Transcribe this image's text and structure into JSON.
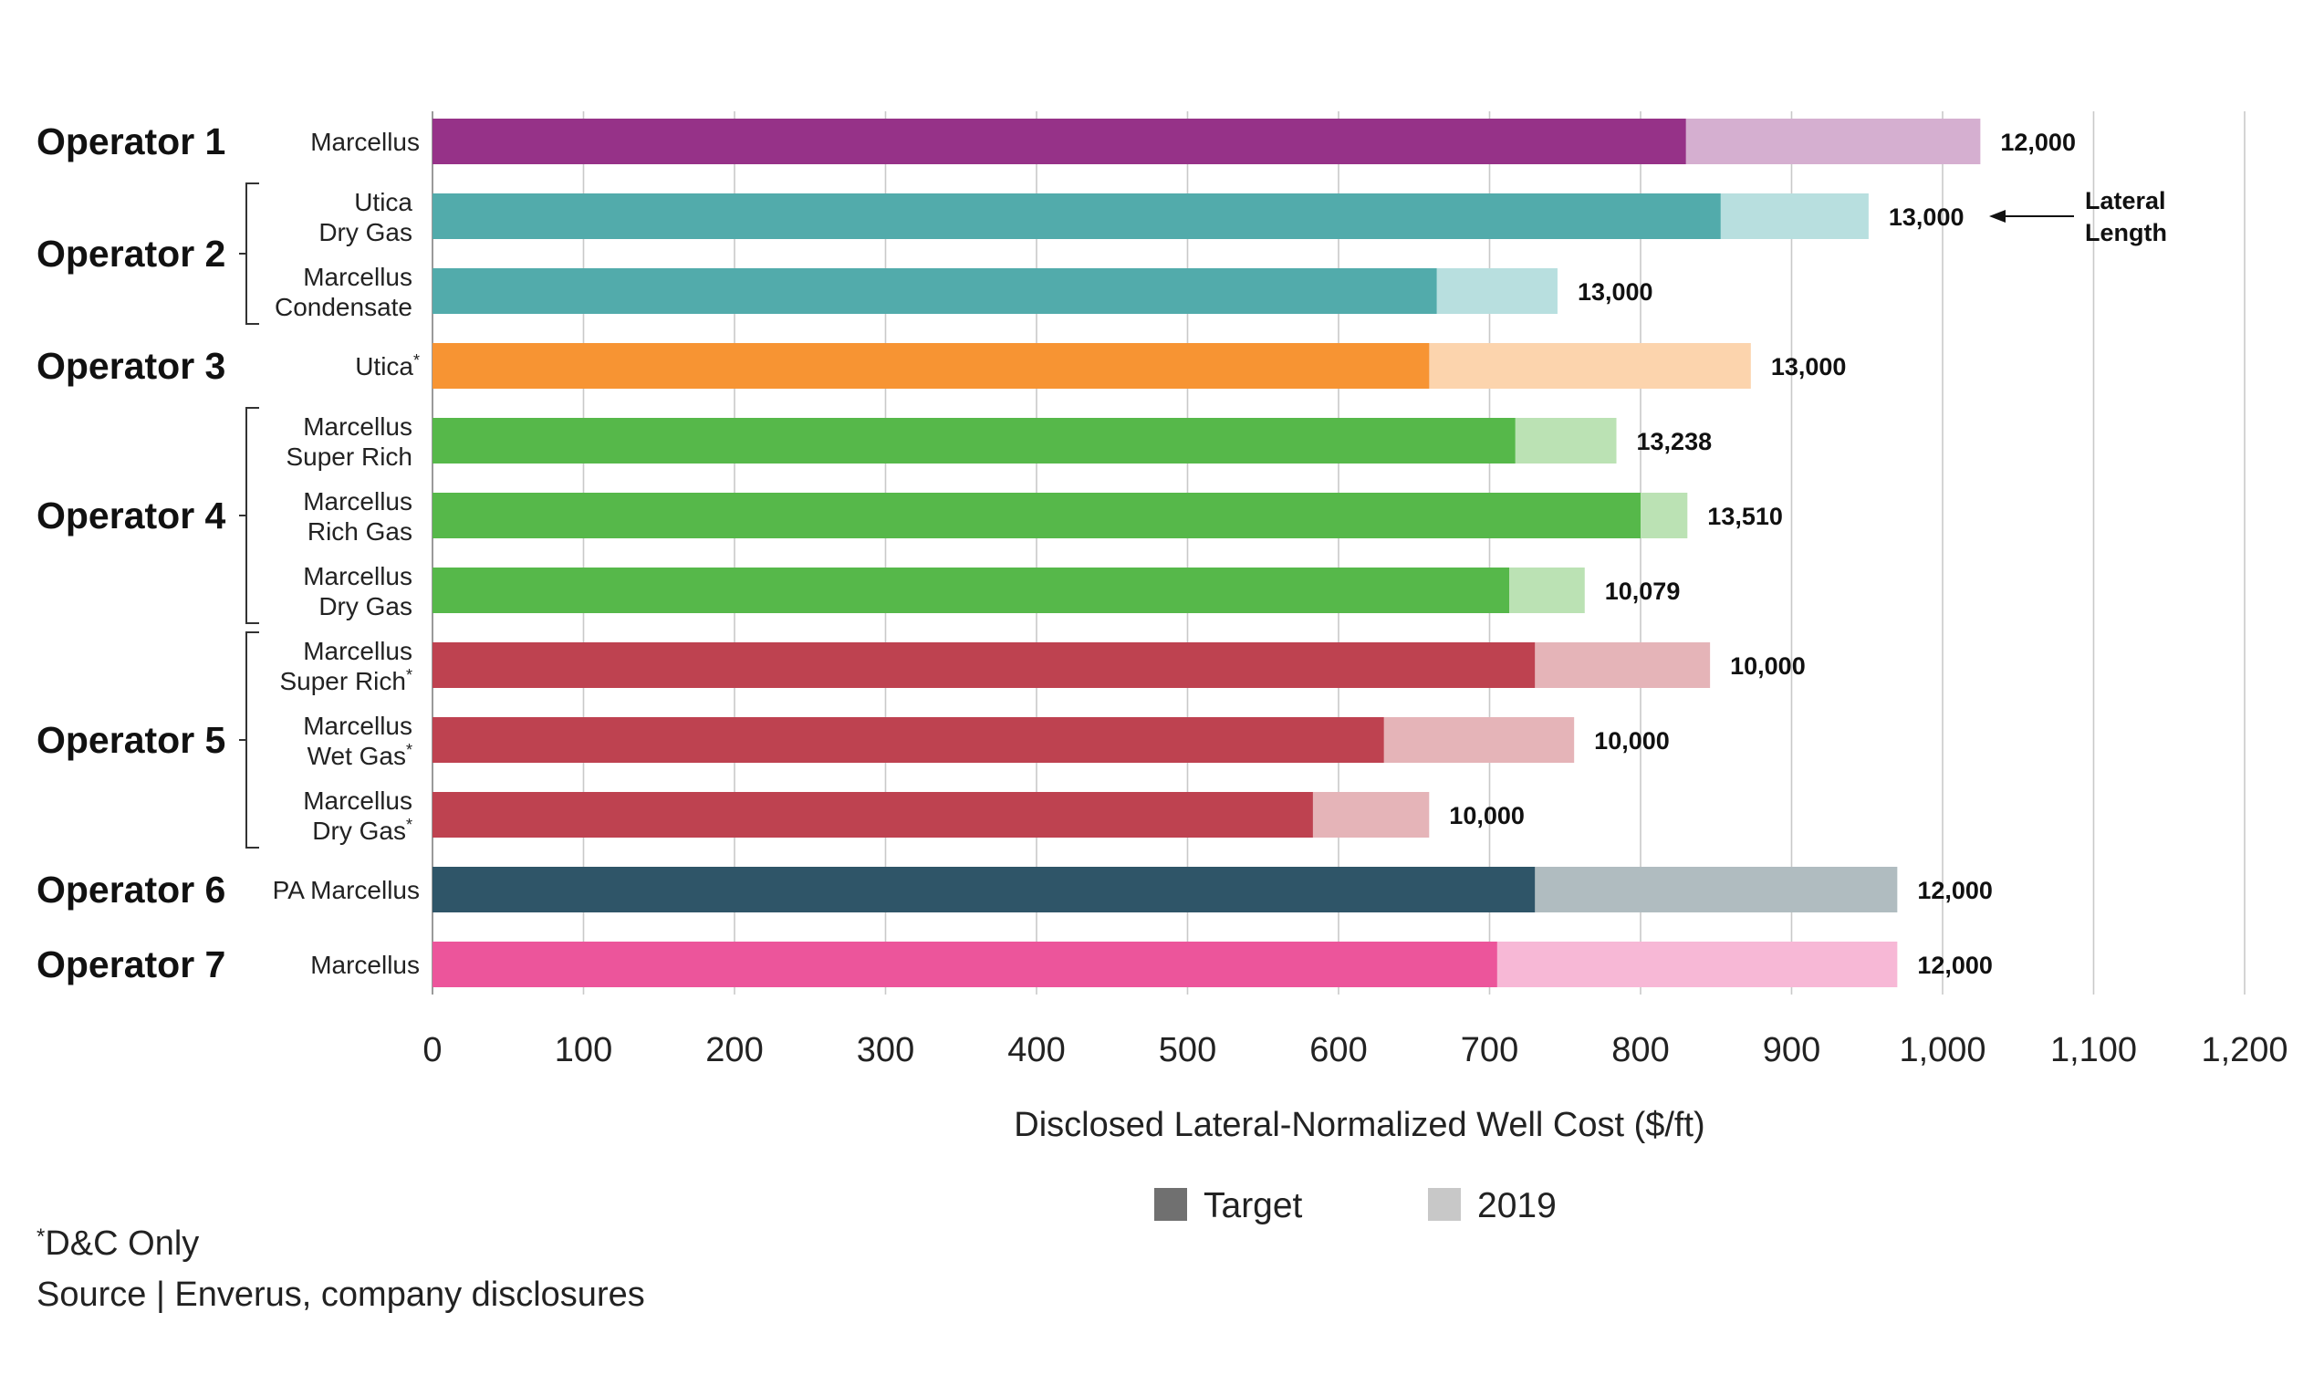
{
  "chart_data": {
    "type": "bar",
    "orientation": "horizontal",
    "stacked_overlay": true,
    "xlabel": "Disclosed Lateral-Normalized Well Cost ($/ft)",
    "xlim": [
      0,
      1200
    ],
    "x_ticks": [
      0,
      100,
      200,
      300,
      400,
      500,
      600,
      700,
      800,
      900,
      1000,
      1100,
      1200
    ],
    "x_tick_labels": [
      "0",
      "100",
      "200",
      "300",
      "400",
      "500",
      "600",
      "700",
      "800",
      "900",
      "1,000",
      "1,100",
      "1,200"
    ],
    "grid": "vertical",
    "legend": [
      {
        "name": "Target",
        "color": "#707070"
      },
      {
        "name": "2019",
        "color": "#c8c8c8"
      }
    ],
    "legend_position": "bottom",
    "groups": [
      {
        "operator": "Operator 1",
        "bracket": false,
        "rows": [
          {
            "label": [
              "Marcellus"
            ],
            "asterisk": false,
            "target": 830,
            "y2019": 1025,
            "lateral_length": "12,000",
            "color": "#963288",
            "light": "#d5afd0"
          }
        ]
      },
      {
        "operator": "Operator 2",
        "bracket": true,
        "rows": [
          {
            "label": [
              "Utica",
              "Dry Gas"
            ],
            "asterisk": false,
            "target": 853,
            "y2019": 951,
            "lateral_length": "13,000",
            "color": "#52abab",
            "light": "#b8dfdf"
          },
          {
            "label": [
              "Marcellus",
              "Condensate"
            ],
            "asterisk": false,
            "target": 665,
            "y2019": 745,
            "lateral_length": "13,000",
            "color": "#52abab",
            "light": "#b8dfdf"
          }
        ]
      },
      {
        "operator": "Operator 3",
        "bracket": false,
        "rows": [
          {
            "label": [
              "Utica"
            ],
            "asterisk": true,
            "target": 660,
            "y2019": 873,
            "lateral_length": "13,000",
            "color": "#f79433",
            "light": "#fcd4ad"
          }
        ]
      },
      {
        "operator": "Operator 4",
        "bracket": true,
        "rows": [
          {
            "label": [
              "Marcellus",
              "Super Rich"
            ],
            "asterisk": false,
            "target": 717,
            "y2019": 784,
            "lateral_length": "13,238",
            "color": "#56b84a",
            "light": "#bbe2b4"
          },
          {
            "label": [
              "Marcellus",
              "Rich Gas"
            ],
            "asterisk": false,
            "target": 800,
            "y2019": 831,
            "lateral_length": "13,510",
            "color": "#56b84a",
            "light": "#bbe2b4"
          },
          {
            "label": [
              "Marcellus",
              "Dry Gas"
            ],
            "asterisk": false,
            "target": 713,
            "y2019": 763,
            "lateral_length": "10,079",
            "color": "#56b84a",
            "light": "#bbe2b4"
          }
        ]
      },
      {
        "operator": "Operator 5",
        "bracket": true,
        "rows": [
          {
            "label": [
              "Marcellus",
              "Super Rich"
            ],
            "asterisk": true,
            "target": 730,
            "y2019": 846,
            "lateral_length": "10,000",
            "color": "#be4250",
            "light": "#e5b4b8"
          },
          {
            "label": [
              "Marcellus",
              "Wet Gas"
            ],
            "asterisk": true,
            "target": 630,
            "y2019": 756,
            "lateral_length": "10,000",
            "color": "#be4250",
            "light": "#e5b4b8"
          },
          {
            "label": [
              "Marcellus",
              "Dry Gas"
            ],
            "asterisk": true,
            "target": 583,
            "y2019": 660,
            "lateral_length": "10,000",
            "color": "#be4250",
            "light": "#e5b4b8"
          }
        ]
      },
      {
        "operator": "Operator 6",
        "bracket": false,
        "rows": [
          {
            "label": [
              "PA Marcellus"
            ],
            "asterisk": false,
            "target": 730,
            "y2019": 970,
            "lateral_length": "12,000",
            "color": "#2f5568",
            "light": "#b0bcc0"
          }
        ]
      },
      {
        "operator": "Operator 7",
        "bracket": false,
        "rows": [
          {
            "label": [
              "Marcellus"
            ],
            "asterisk": false,
            "target": 705,
            "y2019": 970,
            "lateral_length": "12,000",
            "color": "#ec559b",
            "light": "#f7b8d6"
          }
        ]
      }
    ],
    "annotation": {
      "lines": [
        "Lateral",
        "Length"
      ],
      "points_to": "Operator 2 Utica Dry Gas lateral length"
    }
  },
  "footnote": {
    "asterisk": "*",
    "text": "D&C Only"
  },
  "source": "Source | Enverus, company disclosures"
}
